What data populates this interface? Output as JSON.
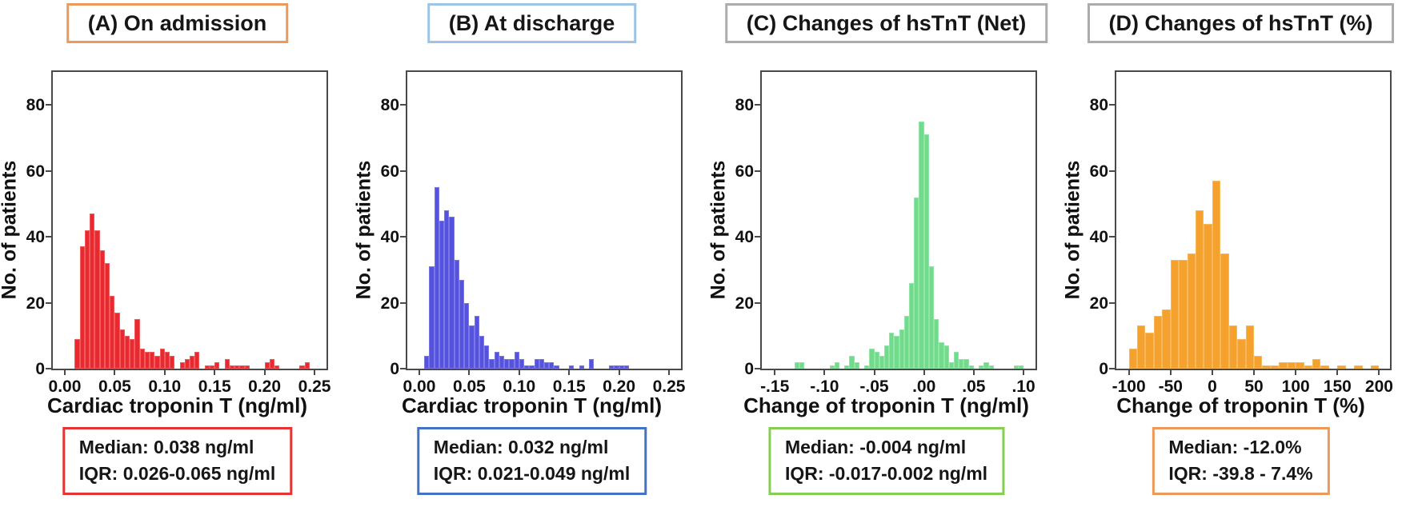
{
  "figure": {
    "background": "#ffffff",
    "ylabel_shared": "No. of patients"
  },
  "chart_data": [
    {
      "type": "histogram",
      "title": "(A) On admission",
      "title_border": "#EC9A5C",
      "xlabel": "Cardiac troponin T (ng/ml)",
      "ylabel": "No. of patients",
      "bar_color": "#E8292F",
      "bar_edge": "#F15B5E",
      "stats_border": "#E63333",
      "median_label": "Median: 0.038 ng/ml",
      "iqr_label": "IQR: 0.026-0.065 ng/ml",
      "bin_width": 0.005,
      "xlim": [
        -0.012,
        0.262
      ],
      "ylim": [
        0,
        90
      ],
      "grid": false,
      "y_ticks": [
        0,
        20,
        40,
        60,
        80
      ],
      "x_ticks": [
        {
          "value": 0.0,
          "label": "0.00"
        },
        {
          "value": 0.05,
          "label": "0.05"
        },
        {
          "value": 0.1,
          "label": "0.10"
        },
        {
          "value": 0.15,
          "label": "0.15"
        },
        {
          "value": 0.2,
          "label": "0.20"
        },
        {
          "value": 0.25,
          "label": "0.25"
        }
      ],
      "bins": [
        [
          0.01,
          9
        ],
        [
          0.015,
          37
        ],
        [
          0.02,
          42
        ],
        [
          0.025,
          47
        ],
        [
          0.03,
          42
        ],
        [
          0.035,
          36
        ],
        [
          0.04,
          32
        ],
        [
          0.045,
          22
        ],
        [
          0.05,
          17
        ],
        [
          0.055,
          12
        ],
        [
          0.06,
          10
        ],
        [
          0.065,
          9
        ],
        [
          0.07,
          15
        ],
        [
          0.075,
          6
        ],
        [
          0.08,
          5
        ],
        [
          0.085,
          5
        ],
        [
          0.09,
          4
        ],
        [
          0.095,
          6
        ],
        [
          0.1,
          5
        ],
        [
          0.105,
          4
        ],
        [
          0.115,
          2
        ],
        [
          0.12,
          3
        ],
        [
          0.125,
          4
        ],
        [
          0.13,
          5
        ],
        [
          0.14,
          1
        ],
        [
          0.145,
          1
        ],
        [
          0.15,
          2
        ],
        [
          0.16,
          3
        ],
        [
          0.165,
          1
        ],
        [
          0.17,
          1
        ],
        [
          0.175,
          1
        ],
        [
          0.18,
          1
        ],
        [
          0.2,
          2
        ],
        [
          0.205,
          3
        ],
        [
          0.21,
          1
        ],
        [
          0.235,
          1
        ],
        [
          0.24,
          2
        ]
      ]
    },
    {
      "type": "histogram",
      "title": "(B) At discharge",
      "title_border": "#9DC3E6",
      "xlabel": "Cardiac troponin T (ng/ml)",
      "ylabel": "No. of patients",
      "bar_color": "#5552DE",
      "bar_edge": "#7A78E8",
      "stats_border": "#4472C4",
      "median_label": "Median: 0.032 ng/ml",
      "iqr_label": "IQR: 0.021-0.049 ng/ml",
      "bin_width": 0.005,
      "xlim": [
        -0.012,
        0.262
      ],
      "ylim": [
        0,
        90
      ],
      "grid": false,
      "y_ticks": [
        0,
        20,
        40,
        60,
        80
      ],
      "x_ticks": [
        {
          "value": 0.0,
          "label": "0.00"
        },
        {
          "value": 0.05,
          "label": "0.05"
        },
        {
          "value": 0.1,
          "label": "0.10"
        },
        {
          "value": 0.15,
          "label": "0.15"
        },
        {
          "value": 0.2,
          "label": "0.20"
        },
        {
          "value": 0.25,
          "label": "0.25"
        }
      ],
      "bins": [
        [
          0.005,
          4
        ],
        [
          0.01,
          31
        ],
        [
          0.015,
          55
        ],
        [
          0.02,
          45
        ],
        [
          0.025,
          48
        ],
        [
          0.03,
          46
        ],
        [
          0.035,
          33
        ],
        [
          0.04,
          27
        ],
        [
          0.045,
          20
        ],
        [
          0.05,
          13
        ],
        [
          0.055,
          16
        ],
        [
          0.06,
          10
        ],
        [
          0.065,
          7
        ],
        [
          0.07,
          3
        ],
        [
          0.075,
          5
        ],
        [
          0.08,
          4
        ],
        [
          0.085,
          3
        ],
        [
          0.09,
          3
        ],
        [
          0.095,
          5
        ],
        [
          0.1,
          3
        ],
        [
          0.105,
          1
        ],
        [
          0.11,
          1
        ],
        [
          0.115,
          3
        ],
        [
          0.12,
          3
        ],
        [
          0.125,
          2
        ],
        [
          0.13,
          2
        ],
        [
          0.135,
          1
        ],
        [
          0.15,
          1
        ],
        [
          0.16,
          1
        ],
        [
          0.17,
          3
        ],
        [
          0.19,
          1
        ],
        [
          0.195,
          1
        ],
        [
          0.2,
          1
        ],
        [
          0.205,
          1
        ]
      ]
    },
    {
      "type": "histogram",
      "title": "(C) Changes of hsTnT (Net)",
      "title_border": "#ACACAC",
      "xlabel": "Change of troponin T (ng/ml)",
      "ylabel": "No. of patients",
      "bar_color": "#6FDB8B",
      "bar_edge": "#92E5A6",
      "stats_border": "#86CE53",
      "median_label": "Median: -0.004 ng/ml",
      "iqr_label": "IQR: -0.017-0.002 ng/ml",
      "bin_width": 0.005,
      "xlim": [
        -0.163,
        0.112
      ],
      "ylim": [
        0,
        90
      ],
      "grid": false,
      "y_ticks": [
        0,
        20,
        40,
        60,
        80
      ],
      "x_ticks": [
        {
          "value": -0.15,
          "label": "-.15"
        },
        {
          "value": -0.1,
          "label": "-.10"
        },
        {
          "value": -0.05,
          "label": "-.05"
        },
        {
          "value": 0.0,
          "label": ".00"
        },
        {
          "value": 0.05,
          "label": ".05"
        },
        {
          "value": 0.1,
          "label": ".10"
        }
      ],
      "bins": [
        [
          -0.13,
          2
        ],
        [
          -0.125,
          2
        ],
        [
          -0.095,
          1
        ],
        [
          -0.09,
          2
        ],
        [
          -0.08,
          1
        ],
        [
          -0.075,
          4
        ],
        [
          -0.07,
          2
        ],
        [
          -0.06,
          1
        ],
        [
          -0.055,
          6
        ],
        [
          -0.05,
          5
        ],
        [
          -0.045,
          4
        ],
        [
          -0.04,
          7
        ],
        [
          -0.035,
          11
        ],
        [
          -0.03,
          10
        ],
        [
          -0.025,
          12
        ],
        [
          -0.02,
          16
        ],
        [
          -0.015,
          26
        ],
        [
          -0.01,
          52
        ],
        [
          -0.005,
          75
        ],
        [
          0.0,
          71
        ],
        [
          0.005,
          31
        ],
        [
          0.01,
          15
        ],
        [
          0.015,
          8
        ],
        [
          0.02,
          7
        ],
        [
          0.025,
          2
        ],
        [
          0.03,
          5
        ],
        [
          0.035,
          3
        ],
        [
          0.04,
          3
        ],
        [
          0.045,
          1
        ],
        [
          0.055,
          1
        ],
        [
          0.06,
          2
        ],
        [
          0.065,
          1
        ],
        [
          0.09,
          1
        ],
        [
          0.095,
          1
        ]
      ]
    },
    {
      "type": "histogram",
      "title": "(D) Changes of hsTnT (%)",
      "title_border": "#ACACAC",
      "xlabel": "Change of troponin T (%)",
      "ylabel": "No. of patients",
      "bar_color": "#F5A12D",
      "bar_edge": "#F7B95C",
      "stats_border": "#EC9A5C",
      "median_label": "Median: -12.0%",
      "iqr_label": "IQR: -39.8 - 7.4%",
      "bin_width": 10,
      "xlim": [
        -115,
        213
      ],
      "ylim": [
        0,
        90
      ],
      "grid": false,
      "y_ticks": [
        0,
        20,
        40,
        60,
        80
      ],
      "x_ticks": [
        {
          "value": -100,
          "label": "-100"
        },
        {
          "value": -50,
          "label": "-50"
        },
        {
          "value": 0,
          "label": "0"
        },
        {
          "value": 50,
          "label": "50"
        },
        {
          "value": 100,
          "label": "100"
        },
        {
          "value": 150,
          "label": "150"
        },
        {
          "value": 200,
          "label": "200"
        }
      ],
      "bins": [
        [
          -100,
          6
        ],
        [
          -90,
          13
        ],
        [
          -80,
          11
        ],
        [
          -70,
          16
        ],
        [
          -60,
          18
        ],
        [
          -50,
          33
        ],
        [
          -40,
          33
        ],
        [
          -30,
          35
        ],
        [
          -20,
          48
        ],
        [
          -10,
          44
        ],
        [
          0,
          57
        ],
        [
          10,
          35
        ],
        [
          20,
          13
        ],
        [
          30,
          9
        ],
        [
          40,
          13
        ],
        [
          50,
          4
        ],
        [
          60,
          1
        ],
        [
          70,
          1
        ],
        [
          80,
          2
        ],
        [
          90,
          2
        ],
        [
          100,
          2
        ],
        [
          110,
          1
        ],
        [
          120,
          3
        ],
        [
          130,
          1
        ],
        [
          150,
          1
        ],
        [
          170,
          1
        ],
        [
          190,
          1
        ]
      ]
    }
  ]
}
